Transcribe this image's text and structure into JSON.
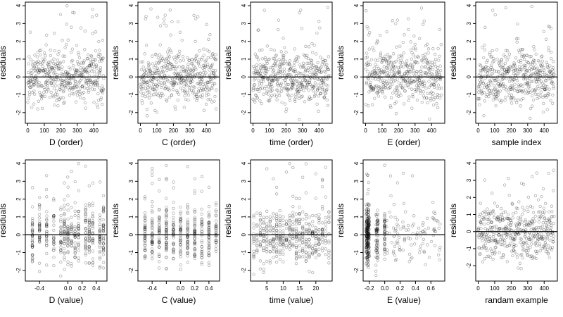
{
  "chart_data": [
    {
      "type": "scatter",
      "xlabel": "D (order)",
      "ylabel": "residuals",
      "xlim": [
        -15,
        480
      ],
      "ylim": [
        -2.6,
        4.2
      ],
      "xticks": [
        0,
        100,
        200,
        300,
        400
      ],
      "xtick_labels": [
        "0",
        "100",
        "200",
        "300",
        "400"
      ],
      "yticks": [
        -2,
        -1,
        0,
        1,
        2,
        3,
        4
      ],
      "ytick_labels": [
        "-2",
        "-1",
        "0",
        "1",
        "2",
        "3",
        "4"
      ],
      "hline": 0,
      "points": {
        "gen": "order",
        "seed": 11,
        "n": 460,
        "xmin": 0,
        "xmax": 460
      }
    },
    {
      "type": "scatter",
      "xlabel": "C (order)",
      "ylabel": "residuals",
      "xlim": [
        -15,
        480
      ],
      "ylim": [
        -2.6,
        4.2
      ],
      "xticks": [
        0,
        100,
        200,
        300,
        400
      ],
      "xtick_labels": [
        "0",
        "100",
        "200",
        "300",
        "400"
      ],
      "yticks": [
        -2,
        -1,
        0,
        1,
        2,
        3,
        4
      ],
      "ytick_labels": [
        "-2",
        "-1",
        "0",
        "1",
        "2",
        "3",
        "4"
      ],
      "hline": 0,
      "points": {
        "gen": "order",
        "seed": 23,
        "n": 460,
        "xmin": 0,
        "xmax": 460
      }
    },
    {
      "type": "scatter",
      "xlabel": "time (order)",
      "ylabel": "residuals",
      "xlim": [
        -15,
        480
      ],
      "ylim": [
        -2.6,
        4.2
      ],
      "xticks": [
        0,
        100,
        200,
        300,
        400
      ],
      "xtick_labels": [
        "0",
        "100",
        "200",
        "300",
        "400"
      ],
      "yticks": [
        -2,
        -1,
        0,
        1,
        2,
        3,
        4
      ],
      "ytick_labels": [
        "-2",
        "-1",
        "0",
        "1",
        "2",
        "3",
        "4"
      ],
      "hline": 0,
      "points": {
        "gen": "order",
        "seed": 37,
        "n": 460,
        "xmin": 0,
        "xmax": 460
      }
    },
    {
      "type": "scatter",
      "xlabel": "E (order)",
      "ylabel": "residuals",
      "xlim": [
        -15,
        480
      ],
      "ylim": [
        -2.6,
        4.2
      ],
      "xticks": [
        0,
        100,
        200,
        300,
        400
      ],
      "xtick_labels": [
        "0",
        "100",
        "200",
        "300",
        "400"
      ],
      "yticks": [
        -2,
        -1,
        0,
        1,
        2,
        3,
        4
      ],
      "ytick_labels": [
        "-2",
        "-1",
        "0",
        "1",
        "2",
        "3",
        "4"
      ],
      "hline": 0,
      "points": {
        "gen": "order",
        "seed": 41,
        "n": 460,
        "xmin": 0,
        "xmax": 460
      }
    },
    {
      "type": "scatter",
      "xlabel": "sample index",
      "ylabel": "residuals",
      "xlim": [
        -15,
        480
      ],
      "ylim": [
        -2.6,
        4.2
      ],
      "xticks": [
        0,
        100,
        200,
        300,
        400
      ],
      "xtick_labels": [
        "0",
        "100",
        "200",
        "300",
        "400"
      ],
      "yticks": [
        -2,
        -1,
        0,
        1,
        2,
        3,
        4
      ],
      "ytick_labels": [
        "-2",
        "-1",
        "0",
        "1",
        "2",
        "3",
        "4"
      ],
      "hline": 0,
      "points": {
        "gen": "order",
        "seed": 53,
        "n": 460,
        "xmin": 0,
        "xmax": 460
      }
    },
    {
      "type": "scatter",
      "xlabel": "D (value)",
      "ylabel": "residuals",
      "xlim": [
        -0.6,
        0.55
      ],
      "ylim": [
        -2.6,
        4.2
      ],
      "xticks": [
        -0.4,
        0,
        0.2,
        0.4
      ],
      "xtick_labels": [
        "-0.4",
        "0.0",
        "0.2",
        "0.4"
      ],
      "yticks": [
        -2,
        -1,
        0,
        1,
        2,
        3,
        4
      ],
      "ytick_labels": [
        "-2",
        "-1",
        "0",
        "1",
        "2",
        "3",
        "4"
      ],
      "hline": 0,
      "points": {
        "gen": "discrete",
        "seed": 61,
        "n": 460,
        "levels": [
          -0.5,
          -0.4,
          -0.3,
          -0.2,
          -0.1,
          -0.05,
          0,
          0.05,
          0.1,
          0.15,
          0.25,
          0.3,
          0.35,
          0.45,
          0.5
        ]
      }
    },
    {
      "type": "scatter",
      "xlabel": "C (value)",
      "ylabel": "residuals",
      "xlim": [
        -0.6,
        0.55
      ],
      "ylim": [
        -2.6,
        4.2
      ],
      "xticks": [
        -0.4,
        -0.2,
        0,
        0.2,
        0.4
      ],
      "xtick_labels": [
        "-0.4",
        "",
        "0.0",
        "0.2",
        "0.4"
      ],
      "yticks": [
        -2,
        -1,
        0,
        1,
        2,
        3,
        4
      ],
      "ytick_labels": [
        "-2",
        "-1",
        "0",
        "1",
        "2",
        "3",
        "4"
      ],
      "hline": 0,
      "points": {
        "gen": "discrete",
        "seed": 71,
        "n": 460,
        "levels": [
          -0.5,
          -0.4,
          -0.3,
          -0.2,
          -0.1,
          0,
          0.1,
          0.2,
          0.3,
          0.4,
          0.5
        ]
      }
    },
    {
      "type": "scatter",
      "xlabel": "time (value)",
      "ylabel": "residuals",
      "xlim": [
        0,
        25
      ],
      "ylim": [
        -2.6,
        4.2
      ],
      "xticks": [
        5,
        10,
        15,
        20
      ],
      "xtick_labels": [
        "5",
        "10",
        "15",
        "20"
      ],
      "yticks": [
        -2,
        -1,
        0,
        1,
        2,
        3,
        4
      ],
      "ytick_labels": [
        "-2",
        "-1",
        "0",
        "1",
        "2",
        "3",
        "4"
      ],
      "hline": 0,
      "points": {
        "gen": "discrete",
        "seed": 83,
        "n": 460,
        "levels": [
          1,
          2,
          3,
          4,
          5,
          6,
          7,
          8,
          9,
          10,
          11,
          12,
          13,
          14,
          15,
          16,
          17,
          18,
          19,
          20,
          21,
          22,
          23,
          24
        ]
      }
    },
    {
      "type": "scatter",
      "xlabel": "E (value)",
      "ylabel": "residuals",
      "xlim": [
        -0.28,
        0.78
      ],
      "ylim": [
        -2.6,
        4.2
      ],
      "xticks": [
        -0.2,
        0,
        0.2,
        0.4,
        0.6
      ],
      "xtick_labels": [
        "-0.2",
        "0.0",
        "0.2",
        "0.4",
        "0.6"
      ],
      "yticks": [
        -2,
        -1,
        0,
        1,
        2,
        3,
        4
      ],
      "ytick_labels": [
        "-2",
        "-1",
        "0",
        "1",
        "2",
        "3",
        "4"
      ],
      "hline": 0,
      "points": {
        "gen": "skew",
        "seed": 97,
        "n": 460
      }
    },
    {
      "type": "scatter",
      "xlabel": "randam example",
      "ylabel": "residuals",
      "xlim": [
        -15,
        480
      ],
      "ylim": [
        -2.9,
        4.2
      ],
      "xticks": [
        0,
        100,
        200,
        300,
        400
      ],
      "xtick_labels": [
        "0",
        "100",
        "200",
        "300",
        "400"
      ],
      "yticks": [
        -2,
        -1,
        0,
        1,
        2,
        3,
        4
      ],
      "ytick_labels": [
        "-2",
        "-1",
        "0",
        "1",
        "2",
        "3",
        "4"
      ],
      "hline": 0,
      "points": {
        "gen": "uniform",
        "seed": 101,
        "n": 460,
        "xmin": 0,
        "xmax": 460
      }
    }
  ]
}
